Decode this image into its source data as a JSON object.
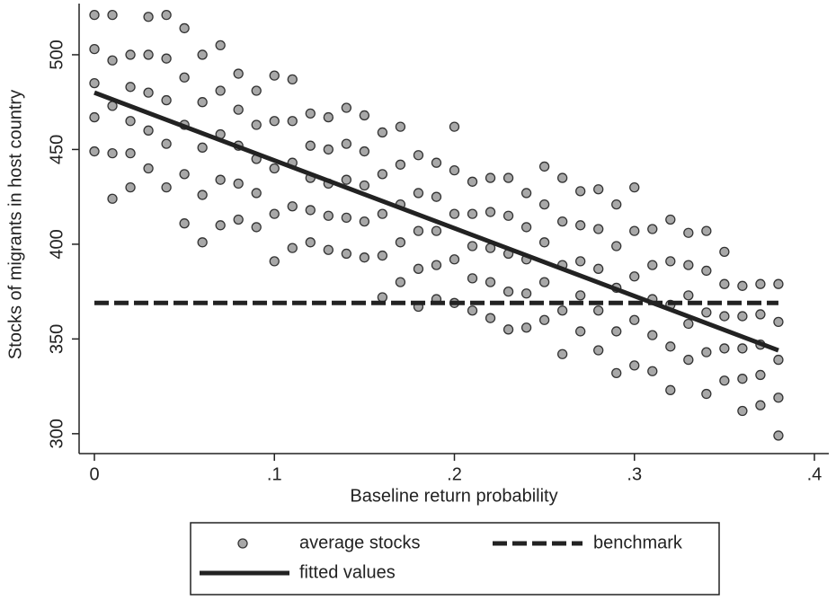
{
  "chart_data": {
    "type": "scatter",
    "xlabel": "Baseline return probability",
    "ylabel": "Stocks of migrants in host country",
    "xlim": [
      -0.0085,
      0.408
    ],
    "ylim": [
      289.5,
      527
    ],
    "xticks": [
      {
        "value": 0,
        "label": "0"
      },
      {
        "value": 0.1,
        "label": ".1"
      },
      {
        "value": 0.2,
        "label": ".2"
      },
      {
        "value": 0.3,
        "label": ".3"
      },
      {
        "value": 0.4,
        "label": ".4"
      }
    ],
    "yticks": [
      300,
      350,
      400,
      450,
      500
    ],
    "grid": false,
    "legend": "bottom",
    "series": [
      {
        "name": "average stocks",
        "kind": "points",
        "color": "#a8a8a8",
        "x": [
          0,
          0,
          0,
          0,
          0,
          0.01,
          0.01,
          0.01,
          0.01,
          0.01,
          0.02,
          0.02,
          0.02,
          0.02,
          0.02,
          0.03,
          0.03,
          0.03,
          0.03,
          0.03,
          0.04,
          0.04,
          0.04,
          0.04,
          0.04,
          0.05,
          0.05,
          0.05,
          0.05,
          0.05,
          0.06,
          0.06,
          0.06,
          0.06,
          0.06,
          0.07,
          0.07,
          0.07,
          0.07,
          0.07,
          0.08,
          0.08,
          0.08,
          0.08,
          0.08,
          0.09,
          0.09,
          0.09,
          0.09,
          0.09,
          0.1,
          0.1,
          0.1,
          0.1,
          0.1,
          0.11,
          0.11,
          0.11,
          0.11,
          0.11,
          0.12,
          0.12,
          0.12,
          0.12,
          0.12,
          0.13,
          0.13,
          0.13,
          0.13,
          0.13,
          0.14,
          0.14,
          0.14,
          0.14,
          0.14,
          0.15,
          0.15,
          0.15,
          0.15,
          0.15,
          0.16,
          0.16,
          0.16,
          0.16,
          0.16,
          0.17,
          0.17,
          0.17,
          0.17,
          0.17,
          0.18,
          0.18,
          0.18,
          0.18,
          0.18,
          0.19,
          0.19,
          0.19,
          0.19,
          0.19,
          0.2,
          0.2,
          0.2,
          0.2,
          0.2,
          0.21,
          0.21,
          0.21,
          0.21,
          0.21,
          0.22,
          0.22,
          0.22,
          0.22,
          0.22,
          0.23,
          0.23,
          0.23,
          0.23,
          0.23,
          0.24,
          0.24,
          0.24,
          0.24,
          0.24,
          0.25,
          0.25,
          0.25,
          0.25,
          0.25,
          0.26,
          0.26,
          0.26,
          0.26,
          0.26,
          0.27,
          0.27,
          0.27,
          0.27,
          0.27,
          0.28,
          0.28,
          0.28,
          0.28,
          0.28,
          0.29,
          0.29,
          0.29,
          0.29,
          0.29,
          0.3,
          0.3,
          0.3,
          0.3,
          0.3,
          0.31,
          0.31,
          0.31,
          0.31,
          0.31,
          0.32,
          0.32,
          0.32,
          0.32,
          0.32,
          0.33,
          0.33,
          0.33,
          0.33,
          0.33,
          0.34,
          0.34,
          0.34,
          0.34,
          0.34,
          0.35,
          0.35,
          0.35,
          0.35,
          0.35,
          0.36,
          0.36,
          0.36,
          0.36,
          0.36,
          0.37,
          0.37,
          0.37,
          0.37,
          0.37,
          0.38,
          0.38,
          0.38,
          0.38,
          0.38
        ],
        "values": [
          449,
          467,
          485,
          503,
          521,
          424,
          448,
          473,
          497,
          521,
          430,
          448,
          465,
          483,
          500,
          440,
          460,
          480,
          500,
          520,
          430,
          453,
          476,
          498,
          521,
          411,
          437,
          463,
          488,
          514,
          401,
          426,
          451,
          475,
          500,
          410,
          434,
          458,
          481,
          505,
          413,
          432,
          452,
          471,
          490,
          409,
          427,
          445,
          463,
          481,
          391,
          416,
          440,
          465,
          489,
          398,
          420,
          443,
          465,
          487,
          401,
          418,
          435,
          452,
          469,
          397,
          415,
          432,
          450,
          467,
          395,
          414,
          434,
          453,
          472,
          393,
          412,
          431,
          449,
          468,
          372,
          394,
          416,
          437,
          459,
          380,
          401,
          421,
          442,
          462,
          367,
          387,
          407,
          427,
          447,
          371,
          389,
          407,
          425,
          443,
          369,
          392,
          416,
          439,
          462,
          365,
          382,
          399,
          416,
          433,
          361,
          380,
          398,
          417,
          435,
          355,
          375,
          395,
          415,
          435,
          356,
          374,
          392,
          409,
          427,
          360,
          380,
          401,
          421,
          441,
          342,
          365,
          389,
          412,
          435,
          354,
          373,
          391,
          410,
          428,
          344,
          365,
          387,
          408,
          429,
          332,
          354,
          377,
          399,
          421,
          336,
          360,
          383,
          407,
          430,
          333,
          352,
          371,
          389,
          408,
          323,
          346,
          368,
          391,
          413,
          339,
          358,
          373,
          389,
          406,
          321,
          343,
          364,
          386,
          407,
          328,
          345,
          362,
          379,
          396,
          312,
          329,
          345,
          362,
          378,
          315,
          331,
          347,
          363,
          379,
          299,
          319,
          339,
          359,
          379
        ]
      },
      {
        "name": "benchmark",
        "kind": "line",
        "style": "dashed",
        "color": "#222222",
        "x": [
          0,
          0.38
        ],
        "values": [
          369,
          369
        ]
      },
      {
        "name": "fitted values",
        "kind": "line",
        "style": "solid",
        "color": "#222222",
        "x": [
          0,
          0.38
        ],
        "values": [
          480,
          344
        ]
      }
    ]
  }
}
